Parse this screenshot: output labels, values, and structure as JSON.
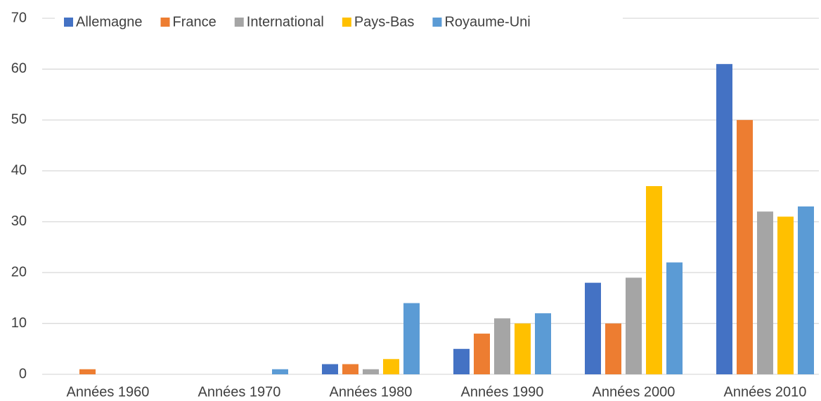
{
  "chart_data": {
    "type": "bar",
    "categories": [
      "Années 1960",
      "Années 1970",
      "Années 1980",
      "Années 1990",
      "Années 2000",
      "Années 2010"
    ],
    "series": [
      {
        "name": "Allemagne",
        "color": "#4472c4",
        "values": [
          0,
          0,
          2,
          5,
          18,
          61
        ]
      },
      {
        "name": "France",
        "color": "#ed7d31",
        "values": [
          1,
          0,
          2,
          8,
          10,
          50
        ]
      },
      {
        "name": "International",
        "color": "#a5a5a5",
        "values": [
          0,
          0,
          1,
          11,
          19,
          32
        ]
      },
      {
        "name": "Pays-Bas",
        "color": "#ffc000",
        "values": [
          0,
          0,
          3,
          10,
          37,
          31
        ]
      },
      {
        "name": "Royaume-Uni",
        "color": "#5b9bd5",
        "values": [
          0,
          1,
          14,
          12,
          22,
          33
        ]
      }
    ],
    "ylim": [
      0,
      70
    ],
    "yticks": [
      0,
      10,
      20,
      30,
      40,
      50,
      60,
      70
    ],
    "grid": true,
    "legend": "top"
  }
}
